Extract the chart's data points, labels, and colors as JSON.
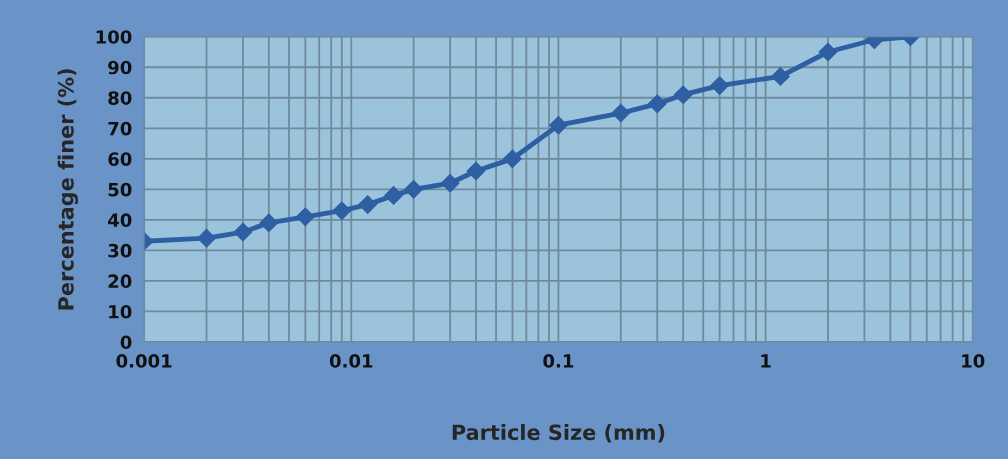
{
  "chart_data": {
    "type": "line",
    "xlabel": "Particle Size (mm)",
    "ylabel": "Percentage finer (%)",
    "x": [
      0.001,
      0.002,
      0.003,
      0.004,
      0.006,
      0.009,
      0.012,
      0.016,
      0.02,
      0.03,
      0.04,
      0.06,
      0.1,
      0.2,
      0.3,
      0.4,
      0.6,
      1.18,
      2,
      3.35,
      5
    ],
    "series": [
      {
        "color": "#2e5fa3",
        "values": [
          33,
          34,
          36,
          39,
          41,
          43,
          45,
          48,
          50,
          52,
          56,
          60,
          71,
          75,
          78,
          81,
          84,
          87,
          95,
          99,
          100
        ]
      }
    ],
    "log": "x",
    "xlim": [
      0.001,
      10
    ],
    "xticks": [
      {
        "value": 0.001,
        "label": "0.001"
      },
      {
        "value": 0.01,
        "label": "0.01"
      },
      {
        "value": 0.1,
        "label": "0.1"
      },
      1,
      10
    ],
    "ylim": [
      0,
      100
    ],
    "yticks": [
      0,
      10,
      20,
      30,
      40,
      50,
      60,
      70,
      80,
      90,
      100
    ],
    "grid": true,
    "marker": "diamond",
    "line_style": "solid"
  }
}
